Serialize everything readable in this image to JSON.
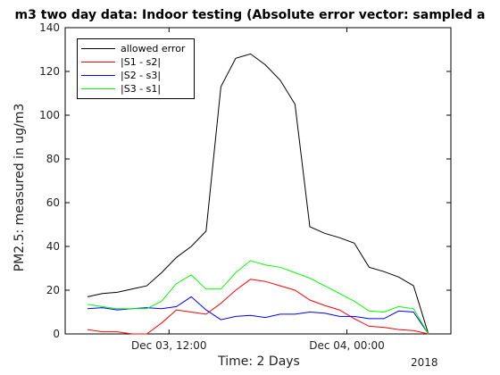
{
  "chart_data": {
    "type": "line",
    "title": "m3 two day data: Indoor testing (Absolute error vector: sampled a",
    "xlabel": "Time: 2 Days",
    "ylabel": "PM2.5: measured in ug/m3",
    "year_label": "2018",
    "x_ticks": [
      "Dec 03, 12:00",
      "Dec 04, 00:00"
    ],
    "y_ticks": [
      "0",
      "20",
      "40",
      "60",
      "80",
      "100",
      "120",
      "140"
    ],
    "ylim": [
      0,
      140
    ],
    "grid": false,
    "legend_position": "top-left",
    "x": [
      "Dec 03, 06:30",
      "Dec 03, 07:30",
      "Dec 03, 08:30",
      "Dec 03, 09:30",
      "Dec 03, 10:30",
      "Dec 03, 11:30",
      "Dec 03, 12:30",
      "Dec 03, 13:30",
      "Dec 03, 14:30",
      "Dec 03, 15:30",
      "Dec 03, 16:30",
      "Dec 03, 17:30",
      "Dec 03, 18:30",
      "Dec 03, 19:30",
      "Dec 03, 20:30",
      "Dec 03, 21:30",
      "Dec 03, 22:30",
      "Dec 03, 23:30",
      "Dec 04, 00:30",
      "Dec 04, 01:30",
      "Dec 04, 02:30",
      "Dec 04, 03:30",
      "Dec 04, 04:30",
      "Dec 04, 05:30",
      "Dec 04, 06:30",
      "Dec 04, 07:30",
      "Dec 04, 08:30",
      "Dec 04, 09:30",
      "Dec 04, 10:30"
    ],
    "series": [
      {
        "name": "allowed error",
        "color": "#000000",
        "values": [
          17,
          18.5,
          19,
          20.5,
          22,
          28,
          35,
          40,
          47,
          113,
          126,
          128,
          123,
          116,
          105,
          49,
          46,
          44,
          41.5,
          30.5,
          28.5,
          26,
          22,
          0,
          null,
          null,
          null,
          null,
          null
        ]
      },
      {
        "name": "|S1 - s2|",
        "color": "#ff0000",
        "values": [
          2,
          1,
          1,
          0,
          0,
          5,
          11,
          10,
          9,
          14,
          20,
          25,
          24,
          22,
          20,
          15.5,
          13,
          11,
          7,
          3.5,
          3,
          2,
          1.5,
          0,
          null,
          null,
          null,
          null,
          null
        ]
      },
      {
        "name": "|S2 - s3|",
        "color": "#0000ff",
        "values": [
          11.5,
          12,
          11,
          11.5,
          12,
          11.5,
          12.5,
          17,
          11,
          6.5,
          8,
          8.5,
          7.5,
          9,
          9,
          10,
          9.5,
          8,
          8,
          7,
          7,
          10.5,
          10,
          0,
          null,
          null,
          null,
          null,
          null
        ]
      },
      {
        "name": "|S3 - s1|",
        "color": "#00ff00",
        "values": [
          13.5,
          12.5,
          11.5,
          11.5,
          11.5,
          15,
          23,
          27,
          20.5,
          20.5,
          28,
          33.5,
          31.5,
          30.5,
          28,
          25.5,
          22,
          18.5,
          15,
          10.5,
          10,
          12.5,
          11.5,
          0,
          null,
          null,
          null,
          null,
          null
        ]
      }
    ]
  }
}
